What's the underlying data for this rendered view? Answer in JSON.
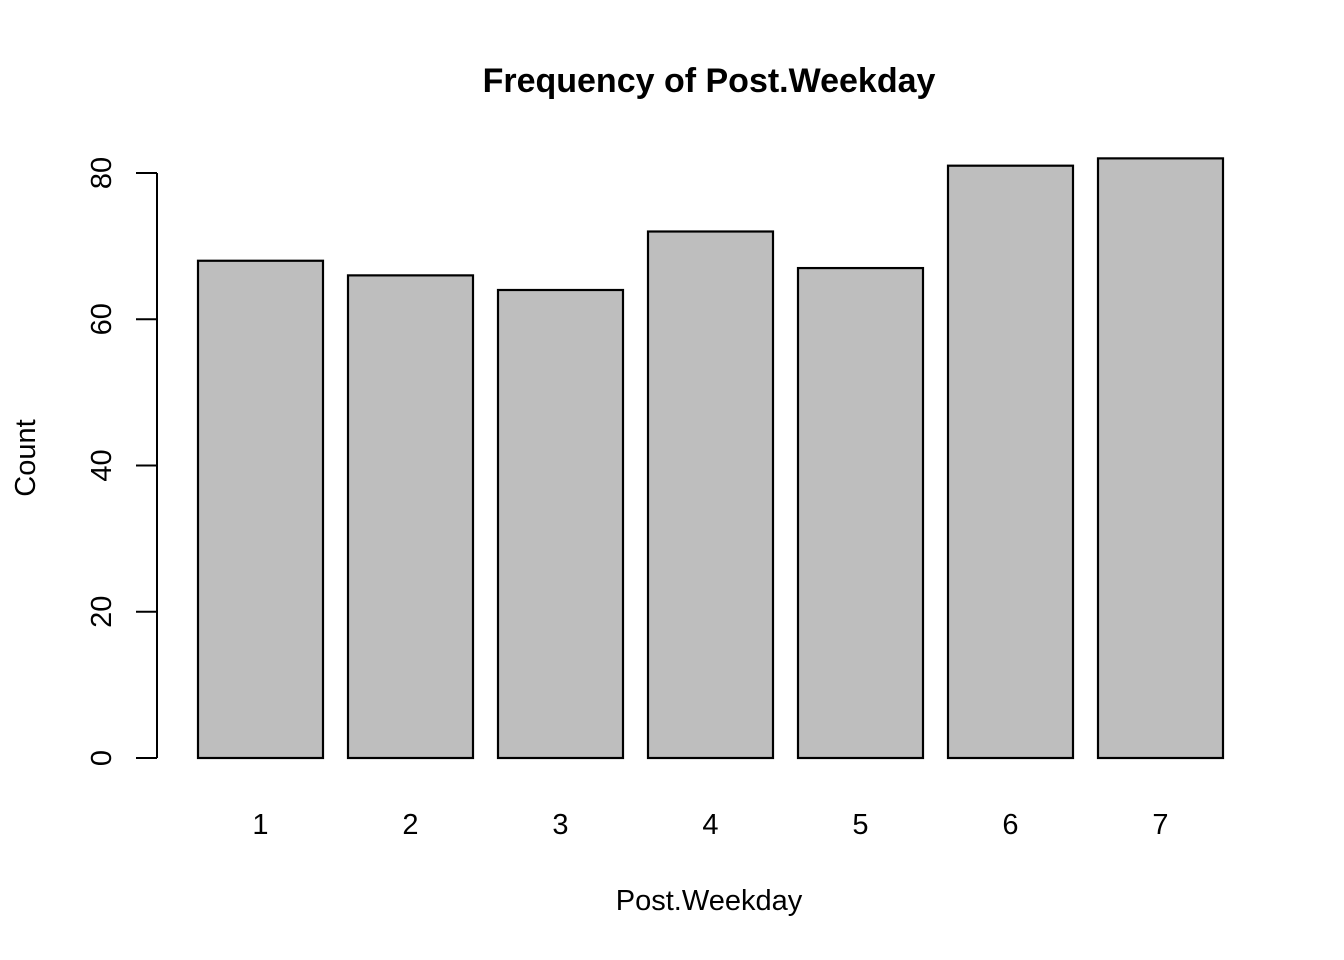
{
  "chart_data": {
    "type": "bar",
    "title": "Frequency of Post.Weekday",
    "xlabel": "Post.Weekday",
    "ylabel": "Count",
    "categories": [
      "1",
      "2",
      "3",
      "4",
      "5",
      "6",
      "7"
    ],
    "values": [
      68,
      66,
      64,
      72,
      67,
      81,
      82
    ],
    "ylim": [
      0,
      80
    ],
    "yticks": [
      0,
      20,
      40,
      60,
      80
    ],
    "grid": false,
    "bar_color": "#bebebe",
    "bar_edge_color": "#000000"
  }
}
